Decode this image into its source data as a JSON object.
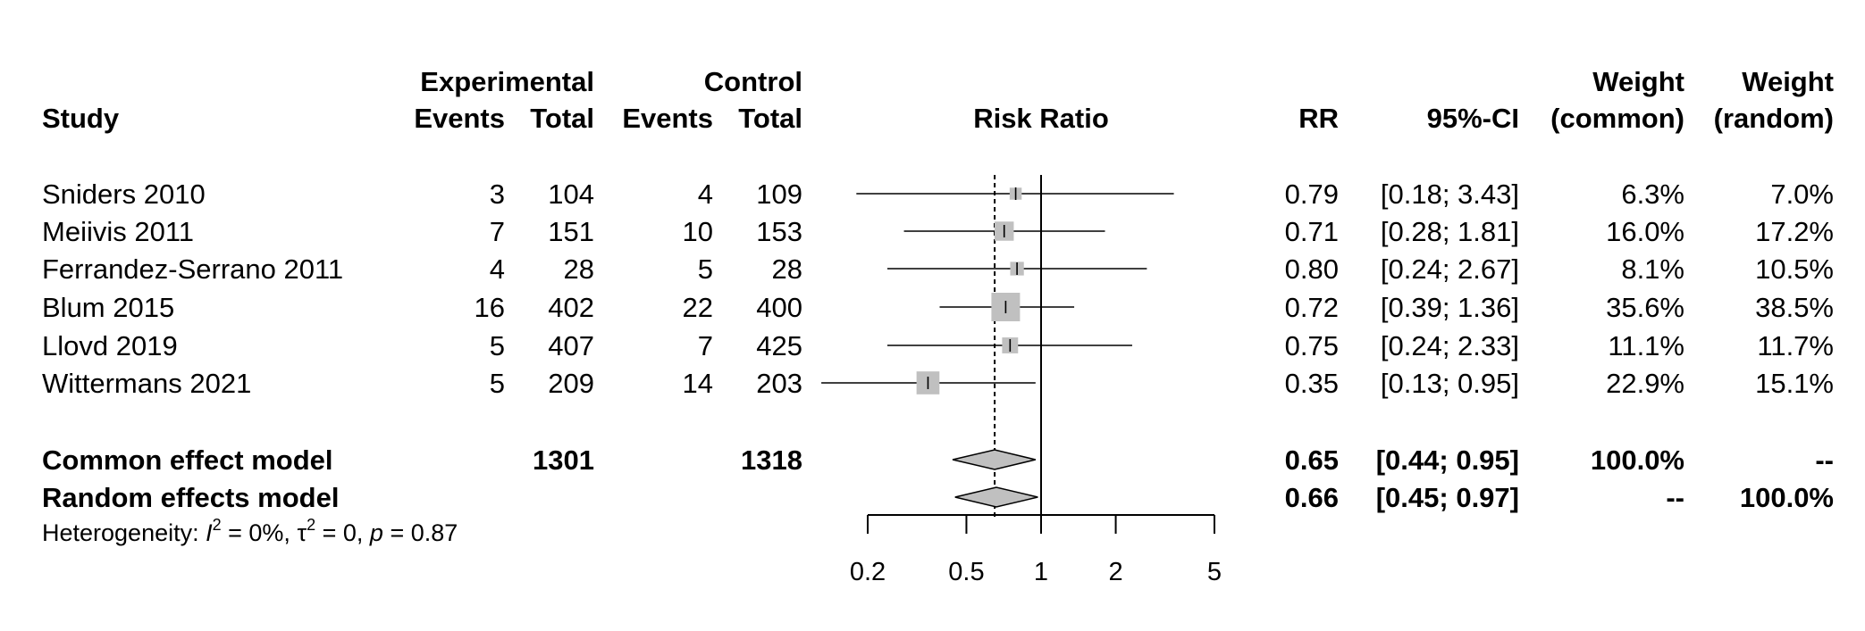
{
  "headers": {
    "study": "Study",
    "experimental": "Experimental",
    "control": "Control",
    "exp_events": "Events",
    "exp_total": "Total",
    "ctl_events": "Events",
    "ctl_total": "Total",
    "risk_ratio": "Risk Ratio",
    "rr": "RR",
    "ci": "95%-CI",
    "weight1": "Weight",
    "weight_common": "(common)",
    "weight2": "Weight",
    "weight_random": "(random)"
  },
  "studies": [
    {
      "name": "Sniders 2010",
      "exp_events": "3",
      "exp_total": "104",
      "ctl_events": "4",
      "ctl_total": "109",
      "rr_text": "0.79",
      "ci_text": "[0.18; 3.43]",
      "w_common": "6.3%",
      "w_random": "7.0%"
    },
    {
      "name": "Meiivis 2011",
      "exp_events": "7",
      "exp_total": "151",
      "ctl_events": "10",
      "ctl_total": "153",
      "rr_text": "0.71",
      "ci_text": "[0.28; 1.81]",
      "w_common": "16.0%",
      "w_random": "17.2%"
    },
    {
      "name": "Ferrandez-Serrano 2011",
      "exp_events": "4",
      "exp_total": "28",
      "ctl_events": "5",
      "ctl_total": "28",
      "rr_text": "0.80",
      "ci_text": "[0.24; 2.67]",
      "w_common": "8.1%",
      "w_random": "10.5%"
    },
    {
      "name": "Blum 2015",
      "exp_events": "16",
      "exp_total": "402",
      "ctl_events": "22",
      "ctl_total": "400",
      "rr_text": "0.72",
      "ci_text": "[0.39; 1.36]",
      "w_common": "35.6%",
      "w_random": "38.5%"
    },
    {
      "name": "Llovd 2019",
      "exp_events": "5",
      "exp_total": "407",
      "ctl_events": "7",
      "ctl_total": "425",
      "rr_text": "0.75",
      "ci_text": "[0.24; 2.33]",
      "w_common": "11.1%",
      "w_random": "11.7%"
    },
    {
      "name": "Wittermans 2021",
      "exp_events": "5",
      "exp_total": "209",
      "ctl_events": "14",
      "ctl_total": "203",
      "rr_text": "0.35",
      "ci_text": "[0.13; 0.95]",
      "w_common": "22.9%",
      "w_random": "15.1%"
    }
  ],
  "summaries": [
    {
      "name": "Common effect model",
      "exp_total": "1301",
      "ctl_total": "1318",
      "rr_text": "0.65",
      "ci_text": "[0.44; 0.95]",
      "w_common": "100.0%",
      "w_random": "--"
    },
    {
      "name": "Random effects model",
      "exp_total": "",
      "ctl_total": "",
      "rr_text": "0.66",
      "ci_text": "[0.45; 0.97]",
      "w_common": "--",
      "w_random": "100.0%"
    }
  ],
  "heterogeneity": {
    "label": "Heterogeneity: ",
    "i2_symbol": "I",
    "sup2": "2",
    "i2_value": " = 0%, ",
    "tau_symbol": "τ",
    "tau_value": " = 0, ",
    "p_symbol": "p",
    "p_value": " = 0.87"
  },
  "chart_data": {
    "type": "forest",
    "xscale": "log",
    "xlim": [
      0.2,
      5
    ],
    "xticks": [
      0.2,
      0.5,
      1,
      2,
      5
    ],
    "xtick_labels": [
      "0.2",
      "0.5",
      "1",
      "2",
      "5"
    ],
    "title": "Risk Ratio",
    "reference_line": 1,
    "pooled_line": 0.65,
    "studies": [
      {
        "name": "Sniders 2010",
        "rr": 0.79,
        "lower": 0.18,
        "upper": 3.43,
        "weight_common": 6.3
      },
      {
        "name": "Meiivis 2011",
        "rr": 0.71,
        "lower": 0.28,
        "upper": 1.81,
        "weight_common": 16.0
      },
      {
        "name": "Ferrandez-Serrano 2011",
        "rr": 0.8,
        "lower": 0.24,
        "upper": 2.67,
        "weight_common": 8.1
      },
      {
        "name": "Blum 2015",
        "rr": 0.72,
        "lower": 0.39,
        "upper": 1.36,
        "weight_common": 35.6
      },
      {
        "name": "Llovd 2019",
        "rr": 0.75,
        "lower": 0.24,
        "upper": 2.33,
        "weight_common": 11.1
      },
      {
        "name": "Wittermans 2021",
        "rr": 0.35,
        "lower": 0.13,
        "upper": 0.95,
        "weight_common": 22.9
      }
    ],
    "pooled": [
      {
        "name": "Common effect model",
        "rr": 0.65,
        "lower": 0.44,
        "upper": 0.95
      },
      {
        "name": "Random effects model",
        "rr": 0.66,
        "lower": 0.45,
        "upper": 0.97
      }
    ],
    "colors": {
      "box": "#c0c0c0",
      "diamond": "#c0c0c0",
      "line": "#000000"
    }
  }
}
